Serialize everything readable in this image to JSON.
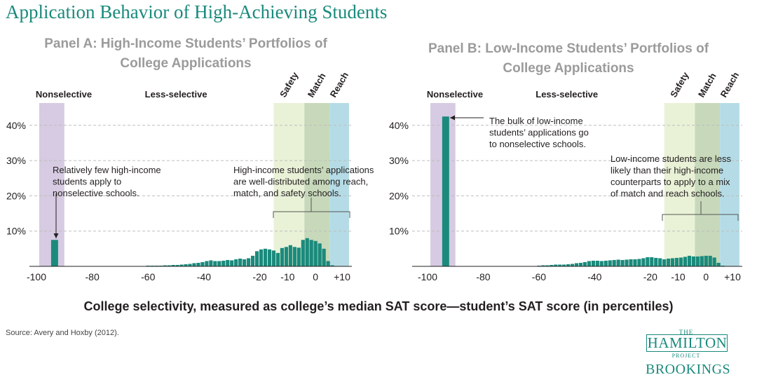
{
  "title": "Application Behavior of High-Achieving Students",
  "x_axis_title": "College selectivity, measured as college’s median SAT score—student’s SAT score (in percentiles)",
  "source": "Source: Avery and Hoxby (2012).",
  "logo": {
    "the": "THE",
    "hamilton": "HAMILTON",
    "project": "PROJECT",
    "brookings": "BROOKINGS"
  },
  "colors": {
    "bar": "#1a8a7c",
    "nonselective_band": "#d6cbe2",
    "safety_band": "#e9f2d7",
    "match_band": "#c7d9ba",
    "reach_band": "#b5dce6",
    "title": "#1a8a7c",
    "panel_title": "#9b9b9b"
  },
  "chart_data": [
    {
      "type": "bar",
      "panel_title": [
        "Panel A: High-Income Students’ Portfolios of",
        "College Applications"
      ],
      "xlabel": "College selectivity, measured as college’s median SAT score—student’s SAT score (in percentiles)",
      "xticks": [
        "-100",
        "-80",
        "-60",
        "-40",
        "-20",
        "-10",
        "0",
        "+10"
      ],
      "xtick_values": [
        -100,
        -80,
        -60,
        -40,
        -20,
        -10,
        0,
        10
      ],
      "yticks": [
        "10%",
        "20%",
        "30%",
        "40%"
      ],
      "ytick_values": [
        10,
        20,
        30,
        40
      ],
      "ylim": [
        0,
        45
      ],
      "xlim": [
        -102,
        12
      ],
      "grid": true,
      "regions": [
        {
          "label": "Nonselective",
          "from": -99,
          "to": -90,
          "shaded": true,
          "color_key": "nonselective_band",
          "rotated": false
        },
        {
          "label": "Less-selective",
          "from": -90,
          "to": -15,
          "shaded": false,
          "rotated": false
        },
        {
          "label": "Safety",
          "from": -15,
          "to": -4,
          "shaded": true,
          "color_key": "safety_band",
          "rotated": true
        },
        {
          "label": "Match",
          "from": -4,
          "to": 5,
          "shaded": true,
          "color_key": "match_band",
          "rotated": true
        },
        {
          "label": "Reach",
          "from": 5,
          "to": 12,
          "shaded": true,
          "color_key": "reach_band",
          "rotated": true
        }
      ],
      "bars": [
        {
          "x": -93.5,
          "width": 2.5,
          "value": 7.5
        },
        {
          "x": -60,
          "value": 0.2
        },
        {
          "x": -58.5,
          "value": 0.2
        },
        {
          "x": -57,
          "value": 0.2
        },
        {
          "x": -55.5,
          "value": 0.2
        },
        {
          "x": -54,
          "value": 0.3
        },
        {
          "x": -52.5,
          "value": 0.3
        },
        {
          "x": -51,
          "value": 0.4
        },
        {
          "x": -49.5,
          "value": 0.4
        },
        {
          "x": -48,
          "value": 0.5
        },
        {
          "x": -46.5,
          "value": 0.6
        },
        {
          "x": -45,
          "value": 0.7
        },
        {
          "x": -43.5,
          "value": 0.9
        },
        {
          "x": -42,
          "value": 1.0
        },
        {
          "x": -40.5,
          "value": 1.2
        },
        {
          "x": -39,
          "value": 1.5
        },
        {
          "x": -37.5,
          "value": 1.7
        },
        {
          "x": -36,
          "value": 1.5
        },
        {
          "x": -34.5,
          "value": 1.5
        },
        {
          "x": -33,
          "value": 1.6
        },
        {
          "x": -31.5,
          "value": 1.8
        },
        {
          "x": -30,
          "value": 1.7
        },
        {
          "x": -28.5,
          "value": 2.0
        },
        {
          "x": -27,
          "value": 2.2
        },
        {
          "x": -25.5,
          "value": 2.0
        },
        {
          "x": -24,
          "value": 2.3
        },
        {
          "x": -22.5,
          "value": 3.0
        },
        {
          "x": -21,
          "value": 4.3
        },
        {
          "x": -19.5,
          "value": 4.8
        },
        {
          "x": -18,
          "value": 5.0
        },
        {
          "x": -16.5,
          "value": 4.8
        },
        {
          "x": -15,
          "value": 4.5
        },
        {
          "x": -13.5,
          "value": 3.8
        },
        {
          "x": -12,
          "value": 5.2
        },
        {
          "x": -10.5,
          "value": 5.5
        },
        {
          "x": -9,
          "value": 6.0
        },
        {
          "x": -7.5,
          "value": 5.5
        },
        {
          "x": -6,
          "value": 5.3
        },
        {
          "x": -4.5,
          "value": 7.5
        },
        {
          "x": -3,
          "value": 8.0
        },
        {
          "x": -1.5,
          "value": 7.5
        },
        {
          "x": 0,
          "value": 7.2
        },
        {
          "x": 1.5,
          "value": 6.5
        },
        {
          "x": 3,
          "value": 5.0
        },
        {
          "x": 4.5,
          "value": 1.5
        },
        {
          "x": 6,
          "value": 0.3
        }
      ],
      "annotations": [
        {
          "lines": [
            "Relatively few high-income",
            "students apply to",
            "nonselective schools."
          ]
        },
        {
          "lines": [
            "High-income students’ applications",
            "are well-distributed among reach,",
            "match, and safety schools."
          ]
        }
      ]
    },
    {
      "type": "bar",
      "panel_title": [
        "Panel B: Low-Income Students’ Portfolios of",
        "College Applications"
      ],
      "xlabel": "College selectivity, measured as college’s median SAT score—student’s SAT score (in percentiles)",
      "xticks": [
        "-100",
        "-80",
        "-60",
        "-40",
        "-20",
        "-10",
        "0",
        "+10"
      ],
      "xtick_values": [
        -100,
        -80,
        -60,
        -40,
        -20,
        -10,
        0,
        10
      ],
      "yticks": [
        "10%",
        "20%",
        "30%",
        "40%"
      ],
      "ytick_values": [
        10,
        20,
        30,
        40
      ],
      "ylim": [
        0,
        45
      ],
      "xlim": [
        -102,
        12
      ],
      "grid": true,
      "regions": [
        {
          "label": "Nonselective",
          "from": -99,
          "to": -90,
          "shaded": true,
          "color_key": "nonselective_band",
          "rotated": false
        },
        {
          "label": "Less-selective",
          "from": -90,
          "to": -15,
          "shaded": false,
          "rotated": false
        },
        {
          "label": "Safety",
          "from": -15,
          "to": -4,
          "shaded": true,
          "color_key": "safety_band",
          "rotated": true
        },
        {
          "label": "Match",
          "from": -4,
          "to": 5,
          "shaded": true,
          "color_key": "match_band",
          "rotated": true
        },
        {
          "label": "Reach",
          "from": 5,
          "to": 12,
          "shaded": true,
          "color_key": "reach_band",
          "rotated": true
        }
      ],
      "bars": [
        {
          "x": -93.5,
          "width": 2.5,
          "value": 42.5
        },
        {
          "x": -60,
          "value": 0.2
        },
        {
          "x": -58.5,
          "value": 0.3
        },
        {
          "x": -57,
          "value": 0.3
        },
        {
          "x": -55.5,
          "value": 0.4
        },
        {
          "x": -54,
          "value": 0.5
        },
        {
          "x": -52.5,
          "value": 0.5
        },
        {
          "x": -51,
          "value": 0.5
        },
        {
          "x": -49.5,
          "value": 0.6
        },
        {
          "x": -48,
          "value": 0.7
        },
        {
          "x": -46.5,
          "value": 0.9
        },
        {
          "x": -45,
          "value": 1.0
        },
        {
          "x": -43.5,
          "value": 1.2
        },
        {
          "x": -42,
          "value": 1.5
        },
        {
          "x": -40.5,
          "value": 1.6
        },
        {
          "x": -39,
          "value": 1.6
        },
        {
          "x": -37.5,
          "value": 1.5
        },
        {
          "x": -36,
          "value": 1.6
        },
        {
          "x": -34.5,
          "value": 1.7
        },
        {
          "x": -33,
          "value": 1.8
        },
        {
          "x": -31.5,
          "value": 1.9
        },
        {
          "x": -30,
          "value": 1.8
        },
        {
          "x": -28.5,
          "value": 1.9
        },
        {
          "x": -27,
          "value": 2.0
        },
        {
          "x": -25.5,
          "value": 2.0
        },
        {
          "x": -24,
          "value": 2.1
        },
        {
          "x": -22.5,
          "value": 2.3
        },
        {
          "x": -21,
          "value": 2.6
        },
        {
          "x": -19.5,
          "value": 2.6
        },
        {
          "x": -18,
          "value": 2.4
        },
        {
          "x": -16.5,
          "value": 2.3
        },
        {
          "x": -15,
          "value": 2.0
        },
        {
          "x": -13.5,
          "value": 2.2
        },
        {
          "x": -12,
          "value": 2.3
        },
        {
          "x": -10.5,
          "value": 2.4
        },
        {
          "x": -9,
          "value": 2.5
        },
        {
          "x": -7.5,
          "value": 2.7
        },
        {
          "x": -6,
          "value": 3.0
        },
        {
          "x": -4.5,
          "value": 2.8
        },
        {
          "x": -3,
          "value": 2.8
        },
        {
          "x": -1.5,
          "value": 2.9
        },
        {
          "x": 0,
          "value": 3.0
        },
        {
          "x": 1.5,
          "value": 3.0
        },
        {
          "x": 3,
          "value": 2.5
        },
        {
          "x": 4.5,
          "value": 1.0
        },
        {
          "x": 6,
          "value": 0.2
        }
      ],
      "annotations": [
        {
          "lines": [
            "The bulk of low-income",
            "students’ applications go",
            "to nonselective schools."
          ]
        },
        {
          "lines": [
            "Low-income students are less",
            "likely than their high-income",
            "counterparts to apply to a mix",
            "of match and reach schools."
          ]
        }
      ]
    }
  ]
}
